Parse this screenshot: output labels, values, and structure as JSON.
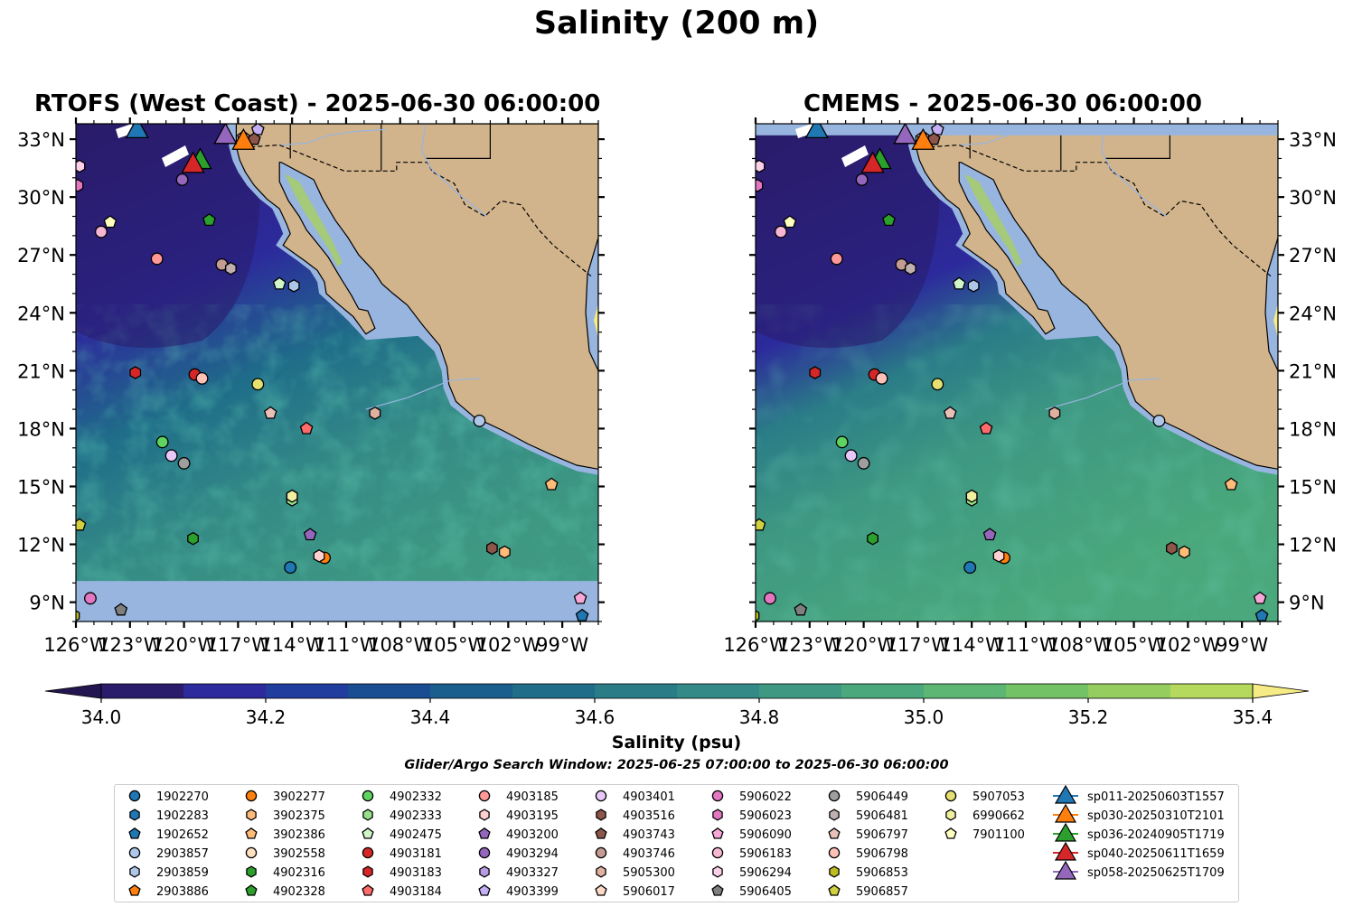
{
  "suptitle": "Salinity (200 m)",
  "panels": [
    {
      "id": "rtofs",
      "title": "RTOFS (West Coast) - 2025-06-30 06:00:00"
    },
    {
      "id": "cmems",
      "title": "CMEMS - 2025-06-30 06:00:00"
    }
  ],
  "colorbar": {
    "label": "Salinity (psu)",
    "ticks": [
      "34.0",
      "34.2",
      "34.4",
      "34.6",
      "34.8",
      "35.0",
      "35.2",
      "35.4"
    ],
    "levels": [
      34.0,
      34.1,
      34.2,
      34.3,
      34.4,
      34.5,
      34.6,
      34.7,
      34.8,
      34.9,
      35.0,
      35.1,
      35.2,
      35.3,
      35.4
    ],
    "colors": [
      "#2a1c6a",
      "#2c2a9c",
      "#213d9e",
      "#194e92",
      "#1a5e8e",
      "#1f6d89",
      "#2a7c87",
      "#348a86",
      "#3e9882",
      "#4aa87c",
      "#5db674",
      "#74c266",
      "#95cd5f",
      "#b5d95c",
      "#d1e06a"
    ],
    "extend_low_color": "#231650",
    "extend_high_color": "#f6ec86"
  },
  "search_window": "Glider/Argo Search Window: 2025-06-25 07:00:00 to 2025-06-30 06:00:00",
  "chart_data": {
    "type": "map",
    "variable": "Salinity (psu)",
    "depth_m": 200,
    "lon_range": [
      -126,
      -97
    ],
    "lat_range": [
      8,
      33.8
    ],
    "xticks": [
      "126°W",
      "123°W",
      "120°W",
      "117°W",
      "114°W",
      "111°W",
      "108°W",
      "105°W",
      "102°W",
      "99°W"
    ],
    "yticks": [
      "9°N",
      "12°N",
      "15°N",
      "18°N",
      "21°N",
      "24°N",
      "27°N",
      "30°N",
      "33°N"
    ],
    "land_color": "#d2b48c",
    "nodata_color": "#98b5e0",
    "floats": [
      {
        "id": "1902270",
        "marker": "circle",
        "color": "#1f77b4",
        "lon": -114.1,
        "lat": 10.8
      },
      {
        "id": "1902283",
        "marker": "hexagon",
        "color": "#1f77b4",
        "lon": -126.4,
        "lat": 27.8
      },
      {
        "id": "1902652",
        "marker": "pentagon",
        "color": "#1f77b4",
        "lon": -97.9,
        "lat": 8.3
      },
      {
        "id": "2903857",
        "marker": "circle",
        "color": "#aec7e8",
        "lon": -103.6,
        "lat": 18.4
      },
      {
        "id": "2903859",
        "marker": "hexagon",
        "color": "#aec7e8",
        "lon": -113.9,
        "lat": 25.4
      },
      {
        "id": "2903886",
        "marker": "pentagon",
        "color": "#ff7f0e",
        "lon": -96.2,
        "lat": 24.1
      },
      {
        "id": "3902277",
        "marker": "circle",
        "color": "#ff7f0e",
        "lon": -112.2,
        "lat": 11.3
      },
      {
        "id": "3902375",
        "marker": "hexagon",
        "color": "#ffbb78",
        "lon": -102.2,
        "lat": 11.6
      },
      {
        "id": "3902386",
        "marker": "pentagon",
        "color": "#ffbb78",
        "lon": -99.6,
        "lat": 15.1
      },
      {
        "id": "3902558",
        "marker": "circle",
        "color": "#ffe0c0",
        "lon": -126.3,
        "lat": 24.0
      },
      {
        "id": "4902316",
        "marker": "hexagon",
        "color": "#2ca02c",
        "lon": -119.5,
        "lat": 12.3
      },
      {
        "id": "4902328",
        "marker": "pentagon",
        "color": "#2ca02c",
        "lon": -118.6,
        "lat": 28.8
      },
      {
        "id": "4902332",
        "marker": "circle",
        "color": "#5fd35f",
        "lon": -121.2,
        "lat": 17.3
      },
      {
        "id": "4902333",
        "marker": "hexagon",
        "color": "#98df8a",
        "lon": -114.0,
        "lat": 14.3
      },
      {
        "id": "4902475",
        "marker": "pentagon",
        "color": "#d0f5c8",
        "lon": -114.7,
        "lat": 25.5
      },
      {
        "id": "4903181",
        "marker": "circle",
        "color": "#d62728",
        "lon": -119.4,
        "lat": 20.8
      },
      {
        "id": "4903183",
        "marker": "hexagon",
        "color": "#d62728",
        "lon": -122.7,
        "lat": 20.9
      },
      {
        "id": "4903184",
        "marker": "pentagon",
        "color": "#ff6b6b",
        "lon": -113.2,
        "lat": 18.0
      },
      {
        "id": "4903185",
        "marker": "circle",
        "color": "#ff9896",
        "lon": -121.5,
        "lat": 26.8
      },
      {
        "id": "4903195",
        "marker": "hexagon",
        "color": "#ffd0d0",
        "lon": -112.5,
        "lat": 11.4
      },
      {
        "id": "4903200",
        "marker": "pentagon",
        "color": "#9467bd",
        "lon": -113.0,
        "lat": 12.5
      },
      {
        "id": "4903294",
        "marker": "circle",
        "color": "#9467bd",
        "lon": -120.1,
        "lat": 30.9
      },
      {
        "id": "4903327",
        "marker": "hexagon",
        "color": "#b79ce3",
        "lon": -114.0,
        "lat": 14.5
      },
      {
        "id": "4903399",
        "marker": "pentagon",
        "color": "#c5b0f5",
        "lon": -115.9,
        "lat": 33.5
      },
      {
        "id": "4903401",
        "marker": "circle",
        "color": "#e8c8f8",
        "lon": -120.7,
        "lat": 16.6
      },
      {
        "id": "4903516",
        "marker": "hexagon",
        "color": "#8c564b",
        "lon": -102.9,
        "lat": 11.8
      },
      {
        "id": "4903743",
        "marker": "pentagon",
        "color": "#8c564b",
        "lon": -116.1,
        "lat": 33.0
      },
      {
        "id": "4903746",
        "marker": "circle",
        "color": "#c49c94",
        "lon": -117.9,
        "lat": 26.5
      },
      {
        "id": "5905300",
        "marker": "hexagon",
        "color": "#e0b0a0",
        "lon": -109.4,
        "lat": 18.8
      },
      {
        "id": "5906017",
        "marker": "pentagon",
        "color": "#ffd8c8",
        "lon": -116.7,
        "lat": 33.1
      },
      {
        "id": "5906022",
        "marker": "circle",
        "color": "#e377c2",
        "lon": -125.2,
        "lat": 9.2
      },
      {
        "id": "5906023",
        "marker": "hexagon",
        "color": "#e377c2",
        "lon": -125.9,
        "lat": 30.6
      },
      {
        "id": "5906090",
        "marker": "pentagon",
        "color": "#f7a8d8",
        "lon": -98.0,
        "lat": 9.2
      },
      {
        "id": "5906183",
        "marker": "circle",
        "color": "#f7b6d2",
        "lon": -124.6,
        "lat": 28.2
      },
      {
        "id": "5906294",
        "marker": "hexagon",
        "color": "#fbd0e8",
        "lon": -125.8,
        "lat": 31.6
      },
      {
        "id": "5906405",
        "marker": "pentagon",
        "color": "#7f7f7f",
        "lon": -123.5,
        "lat": 8.6
      },
      {
        "id": "5906449",
        "marker": "circle",
        "color": "#9f9f9f",
        "lon": -120.0,
        "lat": 16.2
      },
      {
        "id": "5906481",
        "marker": "hexagon",
        "color": "#c0b0b0",
        "lon": -117.4,
        "lat": 26.3
      },
      {
        "id": "5906797",
        "marker": "pentagon",
        "color": "#e8c0b8",
        "lon": -115.2,
        "lat": 18.8
      },
      {
        "id": "5906798",
        "marker": "circle",
        "color": "#ffc0b8",
        "lon": -119.0,
        "lat": 20.6
      },
      {
        "id": "5906853",
        "marker": "hexagon",
        "color": "#bcbd22",
        "lon": -126.1,
        "lat": 8.3
      },
      {
        "id": "5906857",
        "marker": "pentagon",
        "color": "#d0d040",
        "lon": -125.8,
        "lat": 13.0
      },
      {
        "id": "5907053",
        "marker": "circle",
        "color": "#e5e070",
        "lon": -115.9,
        "lat": 20.3
      },
      {
        "id": "6990662",
        "marker": "hexagon",
        "color": "#f0f0a0",
        "lon": -114.0,
        "lat": 14.5
      },
      {
        "id": "7901100",
        "marker": "pentagon",
        "color": "#ffffc0",
        "lon": -124.1,
        "lat": 28.7
      }
    ],
    "gliders": [
      {
        "id": "sp011-20250603T1557",
        "color": "#1f77b4",
        "lon": -122.6,
        "lat": 33.5
      },
      {
        "id": "sp030-20250310T2101",
        "color": "#ff7f0e",
        "lon": -116.7,
        "lat": 32.9
      },
      {
        "id": "sp036-20240905T1719",
        "color": "#2ca02c",
        "lon": -119.1,
        "lat": 31.9
      },
      {
        "id": "sp040-20250611T1659",
        "color": "#d62728",
        "lon": -119.5,
        "lat": 31.7
      },
      {
        "id": "sp058-20250625T1709",
        "color": "#9467bd",
        "lon": -117.7,
        "lat": 33.2
      }
    ]
  }
}
